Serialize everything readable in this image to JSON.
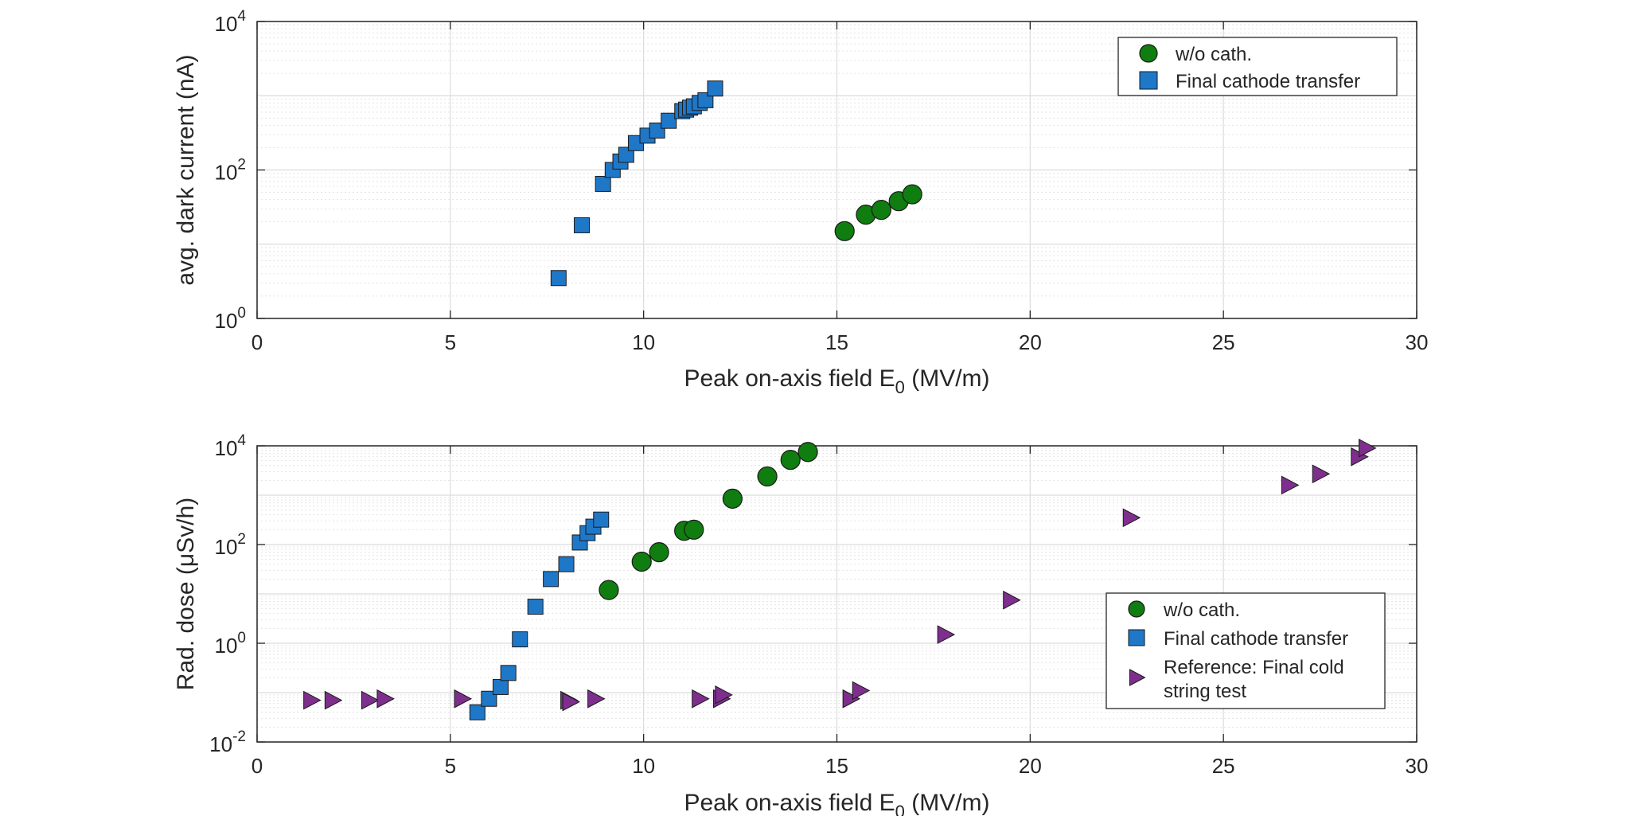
{
  "chart_data": [
    {
      "type": "scatter",
      "xlabel": "Peak on-axis field E",
      "xlabel_sub": "0",
      "xlabel_unit": " (MV/m)",
      "ylabel": "avg. dark current (nA)",
      "xlim": [
        0,
        30
      ],
      "ylim": [
        1,
        10000
      ],
      "yscale": "log",
      "grid": true,
      "legend_placement": "top-right",
      "x_ticks": [
        "0",
        "5",
        "10",
        "15",
        "20",
        "25",
        "30"
      ],
      "y_ticks": [
        {
          "value": 1,
          "base": "10",
          "exp": "0"
        },
        {
          "value": 100,
          "base": "10",
          "exp": "2"
        },
        {
          "value": 10000,
          "base": "10",
          "exp": "4"
        }
      ],
      "series": [
        {
          "name": "w/o cath.",
          "marker": "circle",
          "color": "#0f7d0f",
          "points": [
            [
              15.2,
              15
            ],
            [
              15.75,
              25
            ],
            [
              16.15,
              29
            ],
            [
              16.6,
              38
            ],
            [
              16.95,
              47
            ]
          ]
        },
        {
          "name": "Final cathode transfer",
          "marker": "square",
          "color": "#1f77c8",
          "points": [
            [
              7.8,
              3.5
            ],
            [
              8.4,
              18
            ],
            [
              8.95,
              65
            ],
            [
              9.2,
              100
            ],
            [
              9.4,
              130
            ],
            [
              9.55,
              160
            ],
            [
              9.8,
              230
            ],
            [
              10.1,
              290
            ],
            [
              10.35,
              340
            ],
            [
              10.65,
              460
            ],
            [
              11.0,
              620
            ],
            [
              11.1,
              650
            ],
            [
              11.2,
              690
            ],
            [
              11.3,
              720
            ],
            [
              11.45,
              800
            ],
            [
              11.6,
              870
            ],
            [
              11.85,
              1250
            ]
          ]
        }
      ]
    },
    {
      "type": "scatter",
      "xlabel": "Peak on-axis field E",
      "xlabel_sub": "0",
      "xlabel_unit": " (MV/m)",
      "ylabel": "Rad. dose (μSv/h)",
      "xlim": [
        0,
        30
      ],
      "ylim": [
        0.01,
        10000
      ],
      "yscale": "log",
      "grid": true,
      "legend_placement": "bottom-right",
      "x_ticks": [
        "0",
        "5",
        "10",
        "15",
        "20",
        "25",
        "30"
      ],
      "y_ticks": [
        {
          "value": 0.01,
          "base": "10",
          "exp": "-2"
        },
        {
          "value": 1,
          "base": "10",
          "exp": "0"
        },
        {
          "value": 100,
          "base": "10",
          "exp": "2"
        },
        {
          "value": 10000,
          "base": "10",
          "exp": "4"
        }
      ],
      "series": [
        {
          "name": "w/o cath.",
          "marker": "circle",
          "color": "#0f7d0f",
          "points": [
            [
              9.1,
              12
            ],
            [
              9.95,
              45
            ],
            [
              10.4,
              70
            ],
            [
              11.05,
              190
            ],
            [
              11.3,
              200
            ],
            [
              12.3,
              850
            ],
            [
              13.2,
              2400
            ],
            [
              13.8,
              5200
            ],
            [
              14.25,
              7500
            ]
          ]
        },
        {
          "name": "Final cathode transfer",
          "marker": "square",
          "color": "#1f77c8",
          "points": [
            [
              5.7,
              0.04
            ],
            [
              6.0,
              0.075
            ],
            [
              6.3,
              0.13
            ],
            [
              6.5,
              0.25
            ],
            [
              6.8,
              1.2
            ],
            [
              7.2,
              5.5
            ],
            [
              7.6,
              20
            ],
            [
              8.0,
              40
            ],
            [
              8.35,
              110
            ],
            [
              8.55,
              170
            ],
            [
              8.7,
              230
            ],
            [
              8.9,
              320
            ]
          ]
        },
        {
          "name": "Reference: Final cold string test",
          "legend_lines": [
            "Reference: Final cold",
            "string test"
          ],
          "marker": "triangle-right",
          "color": "#7e2f8e",
          "points": [
            [
              1.4,
              0.07
            ],
            [
              1.95,
              0.07
            ],
            [
              2.9,
              0.07
            ],
            [
              3.3,
              0.075
            ],
            [
              5.3,
              0.075
            ],
            [
              8.05,
              0.07
            ],
            [
              8.1,
              0.065
            ],
            [
              8.75,
              0.075
            ],
            [
              11.45,
              0.075
            ],
            [
              12.0,
              0.075
            ],
            [
              12.05,
              0.09
            ],
            [
              15.35,
              0.075
            ],
            [
              15.6,
              0.11
            ],
            [
              17.8,
              1.5
            ],
            [
              19.5,
              7.5
            ],
            [
              22.6,
              350
            ],
            [
              26.7,
              1600
            ],
            [
              27.5,
              2700
            ],
            [
              28.5,
              6000
            ],
            [
              28.7,
              9000
            ]
          ]
        }
      ]
    }
  ]
}
